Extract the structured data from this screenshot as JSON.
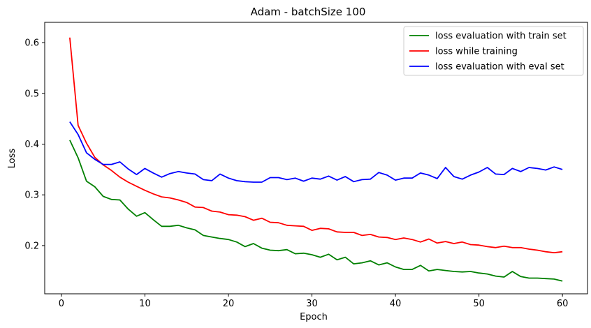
{
  "chart_data": {
    "type": "line",
    "title": "Adam - batchSize 100",
    "xlabel": "Epoch",
    "ylabel": "Loss",
    "xlim": [
      -2,
      63
    ],
    "ylim": [
      0.105,
      0.64
    ],
    "xticks": [
      0,
      10,
      20,
      30,
      40,
      50,
      60
    ],
    "yticks": [
      0.2,
      0.3,
      0.4,
      0.5,
      0.6
    ],
    "xtick_labels": [
      "0",
      "10",
      "20",
      "30",
      "40",
      "50",
      "60"
    ],
    "ytick_labels": [
      "0.2",
      "0.3",
      "0.4",
      "0.5",
      "0.6"
    ],
    "grid": false,
    "legend_position": "top-right",
    "x": [
      1,
      2,
      3,
      4,
      5,
      6,
      7,
      8,
      9,
      10,
      11,
      12,
      13,
      14,
      15,
      16,
      17,
      18,
      19,
      20,
      21,
      22,
      23,
      24,
      25,
      26,
      27,
      28,
      29,
      30,
      31,
      32,
      33,
      34,
      35,
      36,
      37,
      38,
      39,
      40,
      41,
      42,
      43,
      44,
      45,
      46,
      47,
      48,
      49,
      50,
      51,
      52,
      53,
      54,
      55,
      56,
      57,
      58,
      59,
      60
    ],
    "series": [
      {
        "name": "loss evaluation with train set",
        "color": "#008000",
        "values": [
          0.408,
          0.373,
          0.327,
          0.316,
          0.297,
          0.291,
          0.29,
          0.272,
          0.258,
          0.265,
          0.251,
          0.238,
          0.238,
          0.24,
          0.235,
          0.231,
          0.22,
          0.217,
          0.214,
          0.212,
          0.207,
          0.198,
          0.204,
          0.195,
          0.191,
          0.19,
          0.192,
          0.184,
          0.185,
          0.182,
          0.177,
          0.183,
          0.172,
          0.177,
          0.164,
          0.166,
          0.17,
          0.162,
          0.166,
          0.158,
          0.153,
          0.153,
          0.161,
          0.15,
          0.153,
          0.151,
          0.149,
          0.148,
          0.149,
          0.146,
          0.144,
          0.14,
          0.138,
          0.149,
          0.139,
          0.136,
          0.136,
          0.135,
          0.134,
          0.13
        ]
      },
      {
        "name": "loss while training",
        "color": "#ff0000",
        "values": [
          0.61,
          0.437,
          0.402,
          0.374,
          0.359,
          0.348,
          0.335,
          0.325,
          0.317,
          0.309,
          0.302,
          0.296,
          0.294,
          0.29,
          0.285,
          0.276,
          0.275,
          0.268,
          0.266,
          0.261,
          0.26,
          0.257,
          0.25,
          0.254,
          0.246,
          0.245,
          0.24,
          0.239,
          0.238,
          0.23,
          0.234,
          0.233,
          0.227,
          0.226,
          0.226,
          0.22,
          0.222,
          0.217,
          0.216,
          0.212,
          0.215,
          0.212,
          0.207,
          0.213,
          0.205,
          0.208,
          0.204,
          0.207,
          0.202,
          0.201,
          0.198,
          0.196,
          0.199,
          0.196,
          0.196,
          0.193,
          0.191,
          0.188,
          0.186,
          0.188
        ]
      },
      {
        "name": "loss evaluation with eval set",
        "color": "#0000ff",
        "values": [
          0.444,
          0.419,
          0.383,
          0.37,
          0.36,
          0.36,
          0.365,
          0.351,
          0.34,
          0.352,
          0.343,
          0.335,
          0.342,
          0.346,
          0.343,
          0.341,
          0.33,
          0.328,
          0.341,
          0.333,
          0.328,
          0.326,
          0.325,
          0.325,
          0.334,
          0.334,
          0.33,
          0.333,
          0.327,
          0.333,
          0.331,
          0.337,
          0.329,
          0.336,
          0.326,
          0.33,
          0.331,
          0.344,
          0.339,
          0.329,
          0.333,
          0.333,
          0.343,
          0.339,
          0.332,
          0.354,
          0.336,
          0.331,
          0.339,
          0.345,
          0.354,
          0.341,
          0.34,
          0.352,
          0.346,
          0.354,
          0.352,
          0.349,
          0.355,
          0.35
        ]
      }
    ]
  }
}
